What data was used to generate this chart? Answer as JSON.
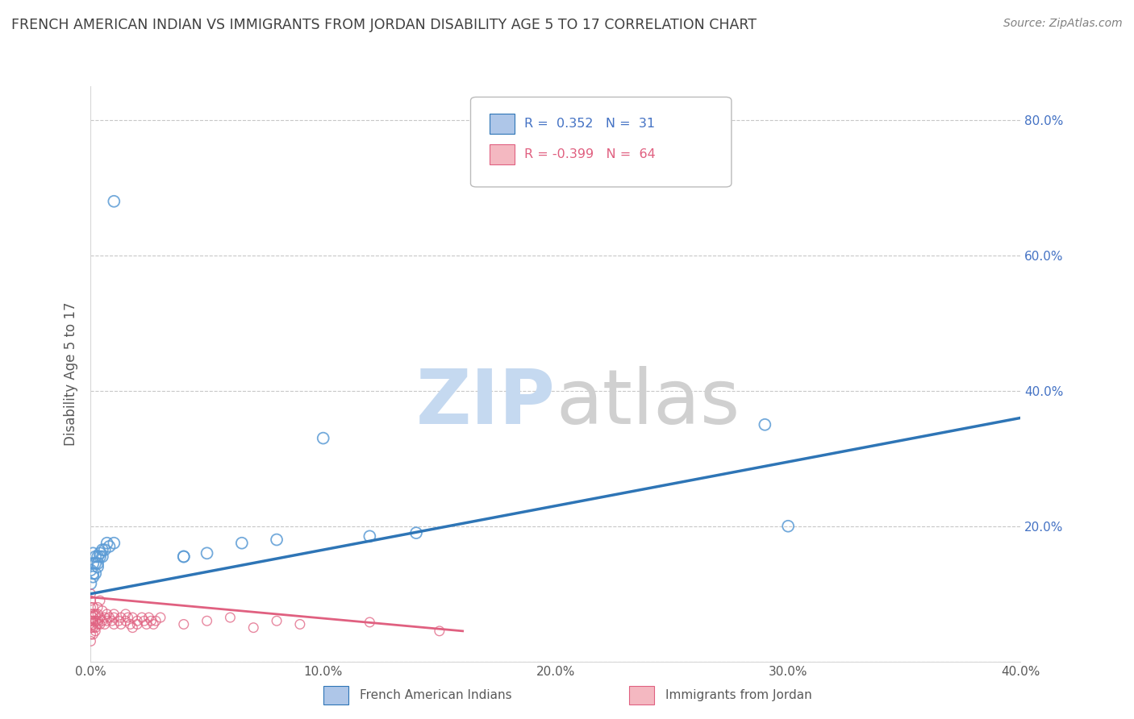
{
  "title": "FRENCH AMERICAN INDIAN VS IMMIGRANTS FROM JORDAN DISABILITY AGE 5 TO 17 CORRELATION CHART",
  "source": "Source: ZipAtlas.com",
  "ylabel": "Disability Age 5 to 17",
  "xlim": [
    0.0,
    0.4
  ],
  "ylim": [
    0.0,
    0.85
  ],
  "xticks": [
    0.0,
    0.1,
    0.2,
    0.3,
    0.4
  ],
  "yticks": [
    0.0,
    0.2,
    0.4,
    0.6,
    0.8
  ],
  "legend_entries": [
    {
      "label": "R =  0.352   N =  31",
      "color": "#aec6e8",
      "text_color": "#4472c4"
    },
    {
      "label": "R = -0.399   N =  64",
      "color": "#f4b8c1",
      "text_color": "#e06080"
    }
  ],
  "blue_scatter": [
    [
      0.0,
      0.135
    ],
    [
      0.0,
      0.115
    ],
    [
      0.001,
      0.16
    ],
    [
      0.001,
      0.125
    ],
    [
      0.001,
      0.145
    ],
    [
      0.001,
      0.13
    ],
    [
      0.002,
      0.145
    ],
    [
      0.002,
      0.155
    ],
    [
      0.002,
      0.13
    ],
    [
      0.003,
      0.14
    ],
    [
      0.003,
      0.145
    ],
    [
      0.003,
      0.155
    ],
    [
      0.004,
      0.16
    ],
    [
      0.004,
      0.155
    ],
    [
      0.005,
      0.165
    ],
    [
      0.005,
      0.155
    ],
    [
      0.006,
      0.165
    ],
    [
      0.007,
      0.175
    ],
    [
      0.008,
      0.17
    ],
    [
      0.01,
      0.175
    ],
    [
      0.01,
      0.68
    ],
    [
      0.04,
      0.155
    ],
    [
      0.04,
      0.155
    ],
    [
      0.05,
      0.16
    ],
    [
      0.065,
      0.175
    ],
    [
      0.08,
      0.18
    ],
    [
      0.1,
      0.33
    ],
    [
      0.12,
      0.185
    ],
    [
      0.14,
      0.19
    ],
    [
      0.29,
      0.35
    ],
    [
      0.3,
      0.2
    ]
  ],
  "pink_scatter": [
    [
      0.0,
      0.04
    ],
    [
      0.0,
      0.06
    ],
    [
      0.0,
      0.05
    ],
    [
      0.0,
      0.03
    ],
    [
      0.0,
      0.07
    ],
    [
      0.0,
      0.08
    ],
    [
      0.0,
      0.09
    ],
    [
      0.0,
      0.1
    ],
    [
      0.001,
      0.05
    ],
    [
      0.001,
      0.06
    ],
    [
      0.001,
      0.04
    ],
    [
      0.001,
      0.055
    ],
    [
      0.001,
      0.07
    ],
    [
      0.001,
      0.08
    ],
    [
      0.001,
      0.065
    ],
    [
      0.002,
      0.05
    ],
    [
      0.002,
      0.06
    ],
    [
      0.002,
      0.07
    ],
    [
      0.002,
      0.045
    ],
    [
      0.003,
      0.055
    ],
    [
      0.003,
      0.06
    ],
    [
      0.003,
      0.07
    ],
    [
      0.003,
      0.08
    ],
    [
      0.004,
      0.065
    ],
    [
      0.004,
      0.055
    ],
    [
      0.004,
      0.09
    ],
    [
      0.005,
      0.06
    ],
    [
      0.005,
      0.075
    ],
    [
      0.006,
      0.065
    ],
    [
      0.006,
      0.055
    ],
    [
      0.007,
      0.07
    ],
    [
      0.007,
      0.06
    ],
    [
      0.008,
      0.065
    ],
    [
      0.009,
      0.06
    ],
    [
      0.01,
      0.07
    ],
    [
      0.01,
      0.055
    ],
    [
      0.01,
      0.065
    ],
    [
      0.012,
      0.06
    ],
    [
      0.013,
      0.065
    ],
    [
      0.013,
      0.055
    ],
    [
      0.015,
      0.07
    ],
    [
      0.015,
      0.06
    ],
    [
      0.016,
      0.065
    ],
    [
      0.017,
      0.055
    ],
    [
      0.018,
      0.05
    ],
    [
      0.018,
      0.065
    ],
    [
      0.02,
      0.06
    ],
    [
      0.02,
      0.055
    ],
    [
      0.022,
      0.065
    ],
    [
      0.023,
      0.06
    ],
    [
      0.024,
      0.055
    ],
    [
      0.025,
      0.065
    ],
    [
      0.026,
      0.06
    ],
    [
      0.027,
      0.055
    ],
    [
      0.028,
      0.06
    ],
    [
      0.03,
      0.065
    ],
    [
      0.04,
      0.055
    ],
    [
      0.05,
      0.06
    ],
    [
      0.06,
      0.065
    ],
    [
      0.07,
      0.05
    ],
    [
      0.08,
      0.06
    ],
    [
      0.09,
      0.055
    ],
    [
      0.12,
      0.058
    ],
    [
      0.15,
      0.045
    ]
  ],
  "blue_line": [
    [
      0.0,
      0.1
    ],
    [
      0.4,
      0.36
    ]
  ],
  "pink_line": [
    [
      0.0,
      0.095
    ],
    [
      0.16,
      0.045
    ]
  ],
  "blue_color": "#5b9bd5",
  "pink_color": "#e06080",
  "blue_line_color": "#2e75b6",
  "pink_line_color": "#e06080",
  "background_color": "#ffffff",
  "grid_color": "#c8c8c8",
  "title_color": "#404040",
  "axis_label_color": "#595959",
  "tick_color": "#595959",
  "right_tick_color": "#4472c4",
  "watermark_color_zip": "#c5d9f0",
  "watermark_color_atlas": "#d0d0d0"
}
